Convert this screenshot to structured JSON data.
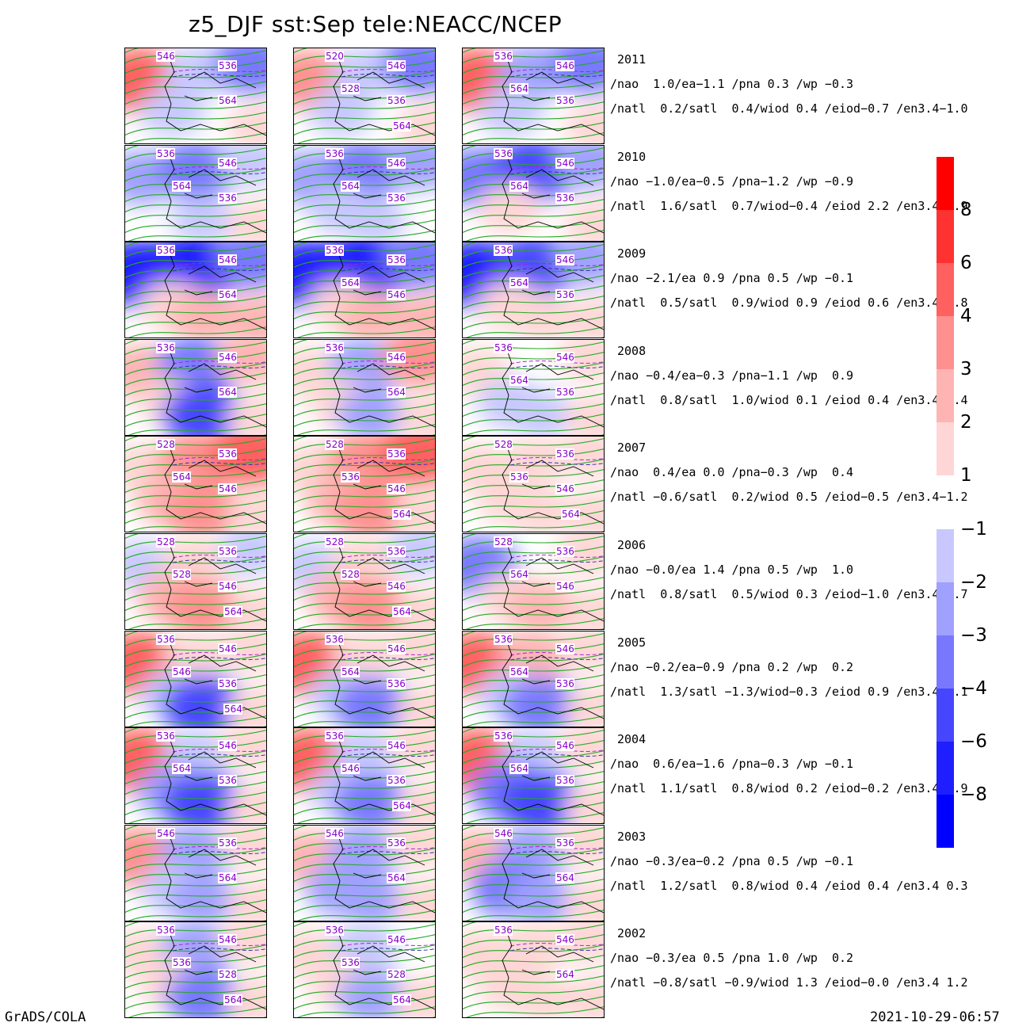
{
  "title": "z5_DJF  sst:Sep  tele:NEACC/NCEP",
  "footer": {
    "left": "GrADS/COLA",
    "right": "2021-10-29-06:57"
  },
  "colors": {
    "red": [
      "#ffd6d6",
      "#ffb4b4",
      "#ff9090",
      "#ff6060",
      "#ff3232",
      "#ff0000"
    ],
    "blue": [
      "#c8c8ff",
      "#a0a0ff",
      "#7878ff",
      "#4646ff",
      "#1e1eff",
      "#0000ff"
    ],
    "contour_green": "#22aa22",
    "contour_dash": "#aa22cc",
    "label_purple": "#8800cc"
  },
  "colorbar": {
    "positive_labels": [
      "8",
      "6",
      "4",
      "3",
      "2",
      "1"
    ],
    "negative_labels": [
      "-1",
      "-2",
      "-3",
      "-4",
      "-6",
      "-8"
    ]
  },
  "rows": [
    {
      "year": "2011",
      "line1": "/nao  1.0/ea−1.1 /pna 0.3 /wp −0.3",
      "line2": "/natl  0.2/satl  0.4/wiod 0.4 /eiod−0.7 /en3.4−1.0",
      "panels": [
        {
          "v": [
            4,
            -1,
            -3,
            -1,
            0,
            1
          ],
          "labels": [
            "546",
            "536",
            "564"
          ]
        },
        {
          "v": [
            3,
            -1,
            -3,
            -1,
            0,
            1
          ],
          "labels": [
            "520",
            "546",
            "536",
            "528",
            "564"
          ]
        },
        {
          "v": [
            4,
            -2,
            -3,
            -1,
            0,
            1
          ],
          "labels": [
            "536",
            "546",
            "536",
            "564"
          ]
        }
      ]
    },
    {
      "year": "2010",
      "line1": "/nao −1.0/ea−0.5 /pna−1.2 /wp −0.9",
      "line2": "/natl  1.6/satl  0.7/wiod−0.4 /eiod 2.2 /en3.4−1.9",
      "panels": [
        {
          "v": [
            -2,
            -3,
            -1,
            0,
            -1,
            1
          ],
          "labels": [
            "536",
            "546",
            "536",
            "564"
          ]
        },
        {
          "v": [
            -2,
            -3,
            -2,
            -1,
            -1,
            0
          ],
          "labels": [
            "536",
            "546",
            "536",
            "564"
          ]
        },
        {
          "v": [
            -3,
            -4,
            -2,
            1,
            0,
            1
          ],
          "labels": [
            "536",
            "546",
            "536",
            "564"
          ]
        }
      ]
    },
    {
      "year": "2009",
      "line1": "/nao −2.1/ea 0.9 /pna 0.5 /wp −0.1",
      "line2": "/natl  0.5/satl  0.9/wiod 0.9 /eiod 0.6 /en3.4 0.8",
      "panels": [
        {
          "v": [
            -5,
            -5,
            -3,
            1,
            2,
            2
          ],
          "labels": [
            "536",
            "546",
            "564"
          ]
        },
        {
          "v": [
            -5,
            -5,
            -3,
            1,
            2,
            2
          ],
          "labels": [
            "536",
            "536",
            "546",
            "564"
          ]
        },
        {
          "v": [
            -5,
            -4,
            -2,
            1,
            1,
            1
          ],
          "labels": [
            "536",
            "546",
            "536",
            "564"
          ]
        }
      ]
    },
    {
      "year": "2008",
      "line1": "/nao −0.4/ea−0.3 /pna−1.1 /wp  0.9",
      "line2": "/natl  0.8/satl  1.0/wiod 0.1 /eiod 0.4 /en3.4−0.4",
      "panels": [
        {
          "v": [
            2,
            -3,
            2,
            1,
            -4,
            1
          ],
          "labels": [
            "536",
            "546",
            "564"
          ]
        },
        {
          "v": [
            1,
            -2,
            3,
            1,
            -2,
            1
          ],
          "labels": [
            "536",
            "546",
            "564"
          ]
        },
        {
          "v": [
            1,
            0,
            1,
            -1,
            -1,
            1
          ],
          "labels": [
            "536",
            "546",
            "536",
            "564"
          ]
        }
      ]
    },
    {
      "year": "2007",
      "line1": "/nao  0.4/ea 0.0 /pna−0.3 /wp  0.4",
      "line2": "/natl −0.6/satl  0.2/wiod 0.5 /eiod−0.5 /en3.4−1.2",
      "panels": [
        {
          "v": [
            1,
            3,
            4,
            2,
            3,
            1
          ],
          "labels": [
            "528",
            "536",
            "546",
            "564"
          ]
        },
        {
          "v": [
            1,
            3,
            4,
            2,
            3,
            1
          ],
          "labels": [
            "528",
            "536",
            "546",
            "536",
            "564"
          ]
        },
        {
          "v": [
            1,
            1,
            1,
            1,
            1,
            1
          ],
          "labels": [
            "528",
            "536",
            "546",
            "536",
            "564"
          ]
        }
      ]
    },
    {
      "year": "2006",
      "line1": "/nao −0.0/ea 1.4 /pna 0.5 /wp  1.0",
      "line2": "/natl  0.8/satl  0.5/wiod 0.3 /eiod−1.0 /en3.4 0.7",
      "panels": [
        {
          "v": [
            -1,
            1,
            -1,
            2,
            3,
            1
          ],
          "labels": [
            "528",
            "536",
            "546",
            "528",
            "564"
          ]
        },
        {
          "v": [
            -1,
            1,
            -1,
            2,
            3,
            1
          ],
          "labels": [
            "528",
            "536",
            "546",
            "528",
            "564"
          ]
        },
        {
          "v": [
            -3,
            0,
            1,
            1,
            2,
            1
          ],
          "labels": [
            "528",
            "536",
            "546",
            "564"
          ]
        }
      ]
    },
    {
      "year": "2005",
      "line1": "/nao −0.2/ea−0.9 /pna 0.2 /wp  0.2",
      "line2": "/natl  1.3/satl −1.3/wiod−0.3 /eiod 0.9 /en3.4−0.1",
      "panels": [
        {
          "v": [
            4,
            1,
            1,
            -1,
            -4,
            1
          ],
          "labels": [
            "536",
            "546",
            "536",
            "546",
            "564"
          ]
        },
        {
          "v": [
            4,
            1,
            1,
            -1,
            -3,
            1
          ],
          "labels": [
            "536",
            "546",
            "536",
            "564"
          ]
        },
        {
          "v": [
            4,
            2,
            1,
            -1,
            -3,
            1
          ],
          "labels": [
            "536",
            "546",
            "536",
            "564"
          ]
        }
      ]
    },
    {
      "year": "2004",
      "line1": "/nao  0.6/ea−1.6 /pna−0.3 /wp −0.1",
      "line2": "/natl  1.1/satl  0.8/wiod 0.2 /eiod−0.2 /en3.4 0.9",
      "panels": [
        {
          "v": [
            4,
            -1,
            1,
            -2,
            -4,
            1
          ],
          "labels": [
            "536",
            "546",
            "536",
            "564"
          ]
        },
        {
          "v": [
            4,
            -1,
            1,
            -1,
            -3,
            1
          ],
          "labels": [
            "536",
            "546",
            "536",
            "546",
            "564"
          ]
        },
        {
          "v": [
            4,
            -1,
            1,
            -3,
            -4,
            1
          ],
          "labels": [
            "536",
            "546",
            "536",
            "564"
          ]
        }
      ]
    },
    {
      "year": "2003",
      "line1": "/nao −0.3/ea−0.2 /pna 0.5 /wp −0.1",
      "line2": "/natl  1.2/satl  0.8/wiod 0.4 /eiod 0.4 /en3.4 0.3",
      "panels": [
        {
          "v": [
            3,
            -2,
            1,
            -1,
            -2,
            1
          ],
          "labels": [
            "546",
            "536",
            "564"
          ]
        },
        {
          "v": [
            2,
            -2,
            1,
            -2,
            -2,
            1
          ],
          "labels": [
            "546",
            "536",
            "564"
          ]
        },
        {
          "v": [
            2,
            -2,
            1,
            -3,
            -2,
            1
          ],
          "labels": [
            "546",
            "536",
            "564"
          ]
        }
      ]
    },
    {
      "year": "2002",
      "line1": "/nao −0.3/ea 0.5 /pna 1.0 /wp  0.2",
      "line2": "/natl −0.8/satl −0.9/wiod 1.3 /eiod−0.0 /en3.4 1.2",
      "panels": [
        {
          "v": [
            1,
            -2,
            1,
            1,
            -3,
            1
          ],
          "labels": [
            "536",
            "546",
            "528",
            "536",
            "564"
          ]
        },
        {
          "v": [
            1,
            -1,
            0,
            1,
            -2,
            1
          ],
          "labels": [
            "536",
            "546",
            "528",
            "536",
            "564"
          ]
        },
        {
          "v": [
            1,
            1,
            1,
            1,
            1,
            1
          ],
          "labels": [
            "536",
            "546",
            "564"
          ]
        }
      ]
    }
  ]
}
